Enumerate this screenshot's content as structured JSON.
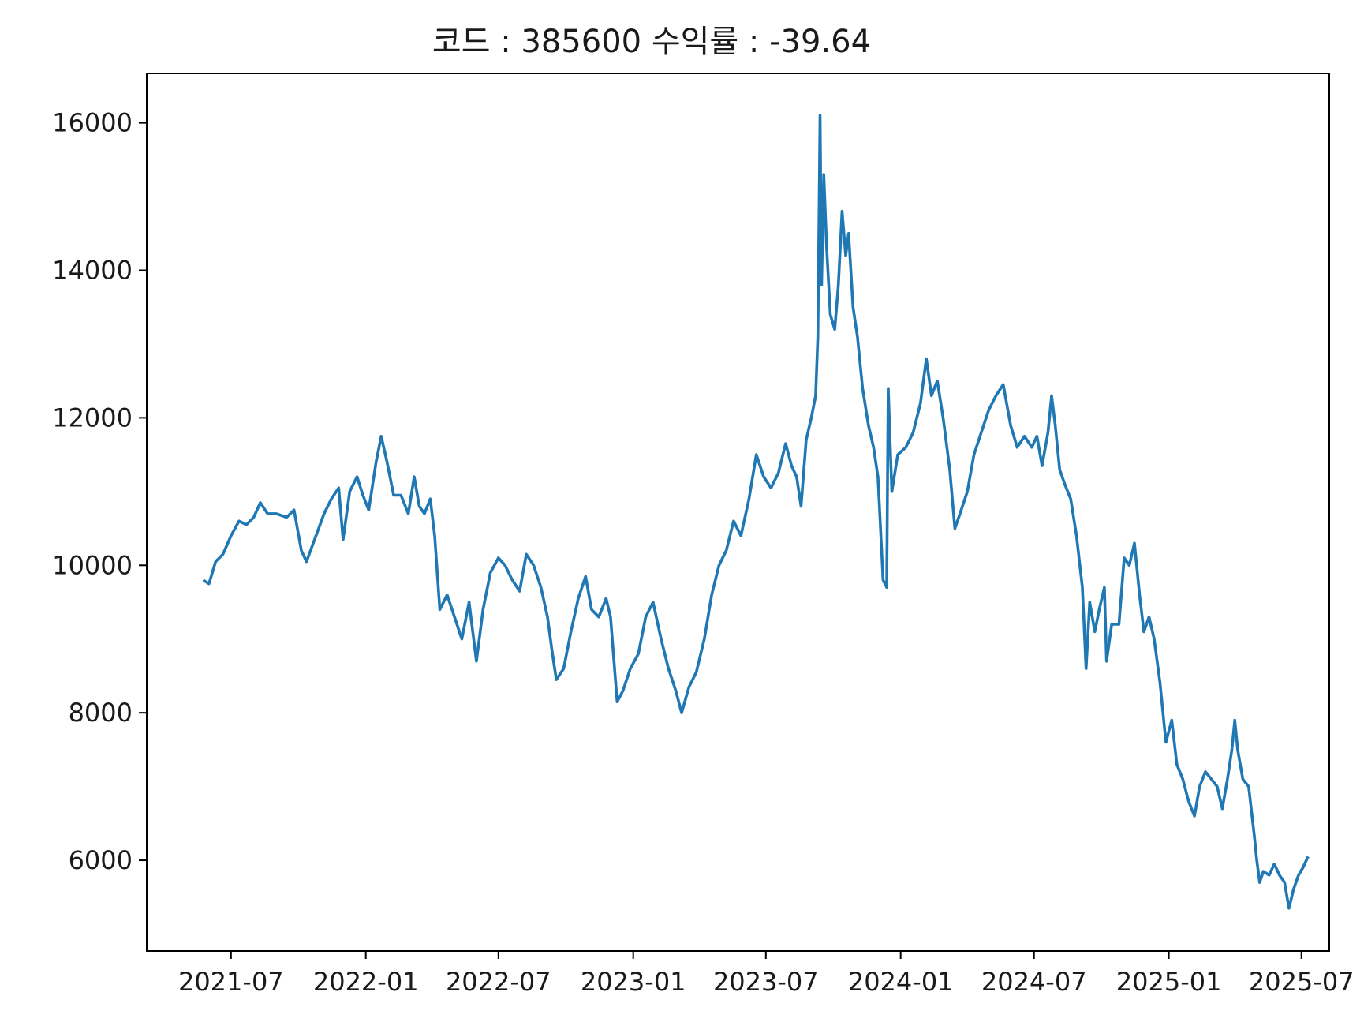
{
  "chart_data": {
    "type": "line",
    "title": "코드 : 385600 수익률 : -39.64",
    "xlabel": "",
    "ylabel": "",
    "x_tick_labels": [
      "2021-07",
      "2022-01",
      "2022-07",
      "2023-01",
      "2023-07",
      "2024-01",
      "2024-07",
      "2025-01",
      "2025-07"
    ],
    "x_tick_dates": [
      "2021-07-01",
      "2022-01-01",
      "2022-07-01",
      "2023-01-01",
      "2023-07-01",
      "2024-01-01",
      "2024-07-01",
      "2025-01-01",
      "2025-07-01"
    ],
    "y_ticks": [
      6000,
      8000,
      10000,
      12000,
      14000,
      16000
    ],
    "y_tick_labels": [
      "6000",
      "8000",
      "10000",
      "12000",
      "14000",
      "16000"
    ],
    "xlim": [
      "2021-03-08",
      "2025-08-08"
    ],
    "ylim": [
      4770,
      16670
    ],
    "grid": false,
    "legend": "none",
    "line_color": "#1f77b4",
    "series": [
      {
        "points": [
          [
            "2021-05-24",
            9800
          ],
          [
            "2021-06-01",
            9750
          ],
          [
            "2021-06-10",
            10050
          ],
          [
            "2021-06-20",
            10150
          ],
          [
            "2021-07-01",
            10400
          ],
          [
            "2021-07-12",
            10600
          ],
          [
            "2021-07-22",
            10550
          ],
          [
            "2021-08-01",
            10650
          ],
          [
            "2021-08-10",
            10850
          ],
          [
            "2021-08-20",
            10700
          ],
          [
            "2021-09-01",
            10700
          ],
          [
            "2021-09-15",
            10650
          ],
          [
            "2021-09-25",
            10750
          ],
          [
            "2021-10-05",
            10200
          ],
          [
            "2021-10-12",
            10050
          ],
          [
            "2021-10-25",
            10400
          ],
          [
            "2021-11-05",
            10700
          ],
          [
            "2021-11-15",
            10900
          ],
          [
            "2021-11-25",
            11050
          ],
          [
            "2021-12-01",
            10350
          ],
          [
            "2021-12-10",
            11000
          ],
          [
            "2021-12-20",
            11200
          ],
          [
            "2021-12-28",
            10950
          ],
          [
            "2022-01-05",
            10750
          ],
          [
            "2022-01-15",
            11400
          ],
          [
            "2022-01-22",
            11750
          ],
          [
            "2022-01-30",
            11400
          ],
          [
            "2022-02-08",
            10950
          ],
          [
            "2022-02-18",
            10950
          ],
          [
            "2022-02-28",
            10700
          ],
          [
            "2022-03-08",
            11200
          ],
          [
            "2022-03-15",
            10800
          ],
          [
            "2022-03-22",
            10700
          ],
          [
            "2022-03-30",
            10900
          ],
          [
            "2022-04-05",
            10400
          ],
          [
            "2022-04-12",
            9400
          ],
          [
            "2022-04-22",
            9600
          ],
          [
            "2022-05-02",
            9300
          ],
          [
            "2022-05-12",
            9000
          ],
          [
            "2022-05-22",
            9500
          ],
          [
            "2022-06-01",
            8700
          ],
          [
            "2022-06-10",
            9400
          ],
          [
            "2022-06-20",
            9900
          ],
          [
            "2022-07-01",
            10100
          ],
          [
            "2022-07-10",
            10000
          ],
          [
            "2022-07-20",
            9800
          ],
          [
            "2022-07-30",
            9650
          ],
          [
            "2022-08-08",
            10150
          ],
          [
            "2022-08-18",
            10000
          ],
          [
            "2022-08-28",
            9700
          ],
          [
            "2022-09-06",
            9300
          ],
          [
            "2022-09-12",
            8850
          ],
          [
            "2022-09-18",
            8450
          ],
          [
            "2022-09-28",
            8600
          ],
          [
            "2022-10-08",
            9100
          ],
          [
            "2022-10-18",
            9550
          ],
          [
            "2022-10-28",
            9850
          ],
          [
            "2022-11-05",
            9400
          ],
          [
            "2022-11-15",
            9300
          ],
          [
            "2022-11-25",
            9550
          ],
          [
            "2022-12-01",
            9300
          ],
          [
            "2022-12-10",
            8150
          ],
          [
            "2022-12-18",
            8300
          ],
          [
            "2022-12-28",
            8600
          ],
          [
            "2023-01-08",
            8800
          ],
          [
            "2023-01-18",
            9300
          ],
          [
            "2023-01-28",
            9500
          ],
          [
            "2023-02-08",
            9000
          ],
          [
            "2023-02-18",
            8600
          ],
          [
            "2023-02-28",
            8300
          ],
          [
            "2023-03-08",
            8000
          ],
          [
            "2023-03-18",
            8350
          ],
          [
            "2023-03-28",
            8550
          ],
          [
            "2023-04-08",
            9000
          ],
          [
            "2023-04-18",
            9600
          ],
          [
            "2023-04-28",
            10000
          ],
          [
            "2023-05-08",
            10200
          ],
          [
            "2023-05-18",
            10600
          ],
          [
            "2023-05-28",
            10400
          ],
          [
            "2023-06-08",
            10900
          ],
          [
            "2023-06-18",
            11500
          ],
          [
            "2023-06-28",
            11200
          ],
          [
            "2023-07-08",
            11050
          ],
          [
            "2023-07-18",
            11250
          ],
          [
            "2023-07-28",
            11650
          ],
          [
            "2023-08-05",
            11350
          ],
          [
            "2023-08-12",
            11200
          ],
          [
            "2023-08-18",
            10800
          ],
          [
            "2023-08-25",
            11700
          ],
          [
            "2023-09-01",
            12000
          ],
          [
            "2023-09-07",
            12300
          ],
          [
            "2023-09-10",
            13100
          ],
          [
            "2023-09-13",
            16100
          ],
          [
            "2023-09-15",
            13800
          ],
          [
            "2023-09-18",
            15300
          ],
          [
            "2023-09-22",
            14300
          ],
          [
            "2023-09-27",
            13400
          ],
          [
            "2023-10-03",
            13200
          ],
          [
            "2023-10-08",
            13800
          ],
          [
            "2023-10-13",
            14800
          ],
          [
            "2023-10-18",
            14200
          ],
          [
            "2023-10-22",
            14500
          ],
          [
            "2023-10-28",
            13500
          ],
          [
            "2023-11-03",
            13100
          ],
          [
            "2023-11-10",
            12400
          ],
          [
            "2023-11-18",
            11900
          ],
          [
            "2023-11-25",
            11600
          ],
          [
            "2023-12-01",
            11200
          ],
          [
            "2023-12-08",
            9800
          ],
          [
            "2023-12-13",
            9700
          ],
          [
            "2023-12-15",
            12400
          ],
          [
            "2023-12-20",
            11000
          ],
          [
            "2023-12-28",
            11500
          ],
          [
            "2024-01-08",
            11600
          ],
          [
            "2024-01-18",
            11800
          ],
          [
            "2024-01-28",
            12200
          ],
          [
            "2024-02-05",
            12800
          ],
          [
            "2024-02-12",
            12300
          ],
          [
            "2024-02-20",
            12500
          ],
          [
            "2024-02-28",
            12000
          ],
          [
            "2024-03-08",
            11300
          ],
          [
            "2024-03-15",
            10500
          ],
          [
            "2024-03-22",
            10700
          ],
          [
            "2024-04-01",
            11000
          ],
          [
            "2024-04-10",
            11500
          ],
          [
            "2024-04-20",
            11800
          ],
          [
            "2024-04-30",
            12100
          ],
          [
            "2024-05-10",
            12300
          ],
          [
            "2024-05-20",
            12450
          ],
          [
            "2024-05-30",
            11900
          ],
          [
            "2024-06-08",
            11600
          ],
          [
            "2024-06-18",
            11750
          ],
          [
            "2024-06-28",
            11600
          ],
          [
            "2024-07-05",
            11750
          ],
          [
            "2024-07-12",
            11350
          ],
          [
            "2024-07-20",
            11800
          ],
          [
            "2024-07-25",
            12300
          ],
          [
            "2024-07-30",
            11900
          ],
          [
            "2024-08-05",
            11300
          ],
          [
            "2024-08-12",
            11100
          ],
          [
            "2024-08-20",
            10900
          ],
          [
            "2024-08-28",
            10400
          ],
          [
            "2024-09-05",
            9700
          ],
          [
            "2024-09-10",
            8600
          ],
          [
            "2024-09-15",
            9500
          ],
          [
            "2024-09-22",
            9100
          ],
          [
            "2024-09-28",
            9400
          ],
          [
            "2024-10-05",
            9700
          ],
          [
            "2024-10-08",
            8700
          ],
          [
            "2024-10-15",
            9200
          ],
          [
            "2024-10-25",
            9200
          ],
          [
            "2024-11-01",
            10100
          ],
          [
            "2024-11-08",
            10000
          ],
          [
            "2024-11-15",
            10300
          ],
          [
            "2024-11-22",
            9600
          ],
          [
            "2024-11-28",
            9100
          ],
          [
            "2024-12-05",
            9300
          ],
          [
            "2024-12-12",
            9000
          ],
          [
            "2024-12-20",
            8400
          ],
          [
            "2024-12-28",
            7600
          ],
          [
            "2025-01-05",
            7900
          ],
          [
            "2025-01-12",
            7300
          ],
          [
            "2025-01-20",
            7100
          ],
          [
            "2025-01-28",
            6800
          ],
          [
            "2025-02-05",
            6600
          ],
          [
            "2025-02-12",
            7000
          ],
          [
            "2025-02-20",
            7200
          ],
          [
            "2025-02-28",
            7100
          ],
          [
            "2025-03-08",
            7000
          ],
          [
            "2025-03-15",
            6700
          ],
          [
            "2025-03-22",
            7100
          ],
          [
            "2025-03-28",
            7500
          ],
          [
            "2025-04-01",
            7900
          ],
          [
            "2025-04-05",
            7500
          ],
          [
            "2025-04-12",
            7100
          ],
          [
            "2025-04-20",
            7000
          ],
          [
            "2025-04-28",
            6300
          ],
          [
            "2025-05-01",
            6000
          ],
          [
            "2025-05-05",
            5700
          ],
          [
            "2025-05-10",
            5850
          ],
          [
            "2025-05-18",
            5800
          ],
          [
            "2025-05-25",
            5950
          ],
          [
            "2025-06-01",
            5800
          ],
          [
            "2025-06-08",
            5700
          ],
          [
            "2025-06-14",
            5350
          ],
          [
            "2025-06-20",
            5600
          ],
          [
            "2025-06-27",
            5800
          ],
          [
            "2025-07-03",
            5900
          ],
          [
            "2025-07-10",
            6050
          ]
        ]
      }
    ]
  }
}
